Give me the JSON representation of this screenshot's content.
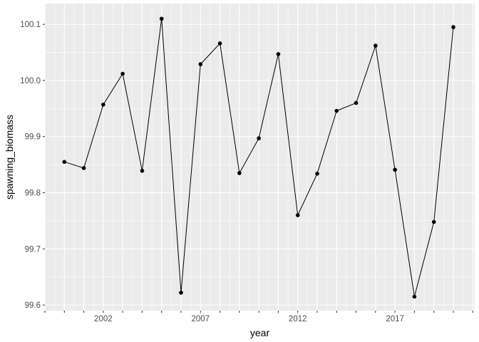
{
  "chart_data": {
    "type": "line",
    "title": "",
    "xlabel": "year",
    "ylabel": "spawning_biomass",
    "x": [
      2000,
      2001,
      2002,
      2003,
      2004,
      2005,
      2006,
      2007,
      2008,
      2009,
      2010,
      2011,
      2012,
      2013,
      2014,
      2015,
      2016,
      2017,
      2018,
      2019,
      2020
    ],
    "y": [
      99.855,
      99.844,
      99.957,
      100.012,
      99.839,
      100.11,
      99.622,
      100.029,
      100.066,
      99.835,
      99.897,
      100.047,
      99.76,
      99.834,
      99.946,
      99.96,
      100.062,
      99.841,
      99.615,
      99.748,
      100.095
    ],
    "xlim": [
      1999,
      2021.1
    ],
    "ylim": [
      99.59,
      100.137
    ],
    "x_tick_labels": [
      "2002",
      "2007",
      "2012",
      "2017"
    ],
    "y_tick_labels": [
      "99.6",
      "99.7",
      "99.8",
      "99.9",
      "100.0",
      "100.1"
    ],
    "grid": true,
    "markers": true,
    "colors": {
      "panel": "#ebebeb",
      "grid": "#ffffff",
      "line": "#000000",
      "text": "#4d4d4d"
    }
  }
}
